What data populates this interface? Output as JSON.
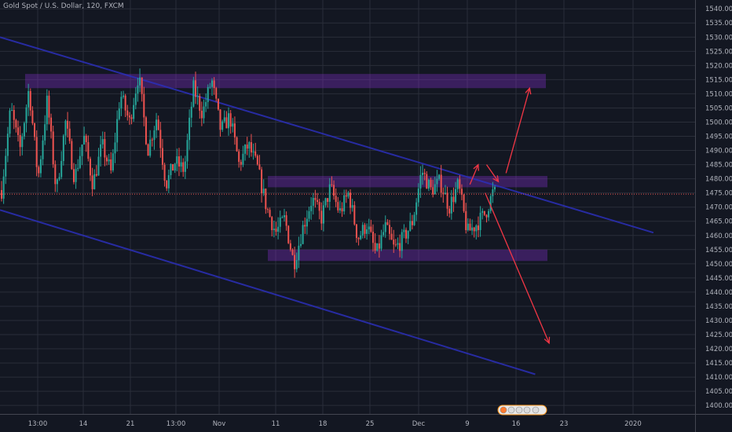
{
  "header": {
    "title": "Gold Spot / U.S. Dollar, 120, FXCM"
  },
  "colors": {
    "background": "#131722",
    "grid": "#2a2e39",
    "up": "#26a69a",
    "down": "#ef5350",
    "channel": "#2b2fb8",
    "zone": "#7b2cbf",
    "arrow": "#f23645",
    "price_line": "#ef5350"
  },
  "icons": [
    "flag-icon",
    "event-marker-icon"
  ],
  "chart_data": {
    "type": "candlestick",
    "title": "Gold Spot / U.S. Dollar, 120, FXCM",
    "xlabel": "",
    "ylabel": "",
    "ylim": [
      1397,
      1542
    ],
    "y_ticks": [
      1400,
      1405,
      1410,
      1415,
      1420,
      1425,
      1430,
      1435,
      1440,
      1445,
      1450,
      1455,
      1460,
      1465,
      1470,
      1475,
      1480,
      1485,
      1490,
      1495,
      1500,
      1505,
      1510,
      1515,
      1520,
      1525,
      1530,
      1535,
      1540
    ],
    "x_ticks": [
      "13:00",
      "14",
      "21",
      "13:00",
      "Nov",
      "11",
      "18",
      "25",
      "Dec",
      "9",
      "16",
      "23",
      "2020"
    ],
    "grid": true,
    "last_price": 1474.61,
    "last_price_label": "1474.61",
    "price_path": [
      1476,
      1505,
      1490,
      1512,
      1480,
      1508,
      1475,
      1500,
      1480,
      1495,
      1478,
      1492,
      1482,
      1510,
      1500,
      1517,
      1490,
      1502,
      1478,
      1486,
      1483,
      1512,
      1503,
      1515,
      1497,
      1502,
      1485,
      1492,
      1484,
      1470,
      1461,
      1466,
      1450,
      1463,
      1473,
      1466,
      1477,
      1468,
      1475,
      1459,
      1464,
      1453,
      1463,
      1455,
      1459,
      1465,
      1483,
      1476,
      1479,
      1470,
      1478,
      1461,
      1464,
      1468,
      1477
    ],
    "zones": [
      {
        "top": 1517,
        "bottom": 1512
      },
      {
        "top": 1481,
        "bottom": 1477
      },
      {
        "top": 1455,
        "bottom": 1451
      }
    ],
    "channel_lines": [
      {
        "from": [
          0,
          1530
        ],
        "to": [
          0.94,
          1461
        ]
      },
      {
        "from": [
          0,
          1469
        ],
        "to": [
          0.77,
          1411
        ]
      }
    ],
    "arrows": [
      {
        "from": [
          0.676,
          1478
        ],
        "to": [
          0.688,
          1485
        ]
      },
      {
        "from": [
          0.7,
          1485
        ],
        "to": [
          0.717,
          1479
        ]
      },
      {
        "from": [
          0.728,
          1482
        ],
        "to": [
          0.762,
          1512
        ]
      },
      {
        "from": [
          0.698,
          1475
        ],
        "to": [
          0.79,
          1422
        ]
      }
    ]
  }
}
